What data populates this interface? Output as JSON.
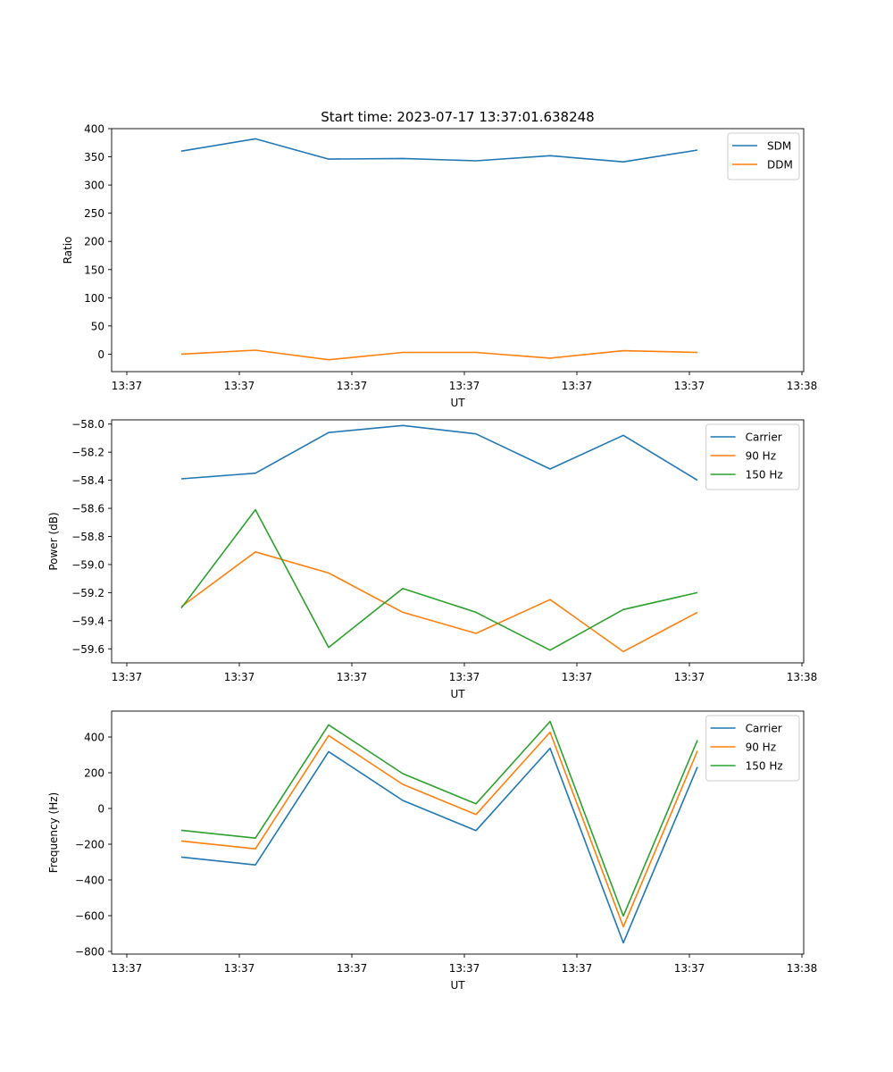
{
  "figure": {
    "title": "Start time: 2023-07-17 13:37:01.638248"
  },
  "colors": {
    "blue": "#1f77b4",
    "orange": "#ff7f0e",
    "green": "#2ca02c"
  },
  "chart_data": [
    {
      "type": "line",
      "xlabel": "UT",
      "ylabel": "Ratio",
      "x_tick_labels": [
        "13:37",
        "13:37",
        "13:37",
        "13:37",
        "13:37",
        "13:37",
        "13:38"
      ],
      "y_ticks": [
        0,
        50,
        100,
        150,
        200,
        250,
        300,
        350,
        400
      ],
      "y_tick_labels": [
        "0",
        "50",
        "100",
        "150",
        "200",
        "250",
        "300",
        "350",
        "400"
      ],
      "ylim": [
        -31,
        400
      ],
      "legend": "top-right",
      "series": [
        {
          "name": "SDM",
          "color": "#1f77b4",
          "values": [
            360,
            382,
            346,
            347,
            343,
            352,
            341,
            362
          ]
        },
        {
          "name": "DDM",
          "color": "#ff7f0e",
          "values": [
            0,
            7,
            -10,
            3,
            3,
            -7,
            6,
            3
          ]
        }
      ]
    },
    {
      "type": "line",
      "xlabel": "UT",
      "ylabel": "Power (dB)",
      "x_tick_labels": [
        "13:37",
        "13:37",
        "13:37",
        "13:37",
        "13:37",
        "13:37",
        "13:38"
      ],
      "y_ticks": [
        -59.6,
        -59.4,
        -59.2,
        -59.0,
        -58.8,
        -58.6,
        -58.4,
        -58.2,
        -58.0
      ],
      "y_tick_labels": [
        "−59.6",
        "−59.4",
        "−59.2",
        "−59.0",
        "−58.8",
        "−58.6",
        "−58.4",
        "−58.2",
        "−58.0"
      ],
      "ylim": [
        -59.7,
        -57.97
      ],
      "legend": "top-right",
      "series": [
        {
          "name": "Carrier",
          "color": "#1f77b4",
          "values": [
            -58.39,
            -58.35,
            -58.06,
            -58.01,
            -58.07,
            -58.32,
            -58.08,
            -58.4
          ]
        },
        {
          "name": "90 Hz",
          "color": "#ff7f0e",
          "values": [
            -59.3,
            -58.91,
            -59.06,
            -59.34,
            -59.49,
            -59.25,
            -59.62,
            -59.34
          ]
        },
        {
          "name": "150 Hz",
          "color": "#2ca02c",
          "values": [
            -59.31,
            -58.61,
            -59.59,
            -59.17,
            -59.34,
            -59.61,
            -59.32,
            -59.2
          ]
        }
      ]
    },
    {
      "type": "line",
      "xlabel": "UT",
      "ylabel": "Frequency (Hz)",
      "x_tick_labels": [
        "13:37",
        "13:37",
        "13:37",
        "13:37",
        "13:37",
        "13:37",
        "13:38"
      ],
      "y_ticks": [
        -800,
        -600,
        -400,
        -200,
        0,
        200,
        400
      ],
      "y_tick_labels": [
        "−800",
        "−600",
        "−400",
        "−200",
        "0",
        "200",
        "400"
      ],
      "ylim": [
        -815,
        545
      ],
      "legend": "top-right",
      "series": [
        {
          "name": "Carrier",
          "color": "#1f77b4",
          "values": [
            -272,
            -316,
            318,
            45,
            -124,
            337,
            -752,
            232
          ]
        },
        {
          "name": "90 Hz",
          "color": "#ff7f0e",
          "values": [
            -182,
            -226,
            408,
            135,
            -34,
            427,
            -662,
            322
          ]
        },
        {
          "name": "150 Hz",
          "color": "#2ca02c",
          "values": [
            -122,
            -166,
            468,
            195,
            26,
            487,
            -602,
            382
          ]
        }
      ]
    }
  ]
}
